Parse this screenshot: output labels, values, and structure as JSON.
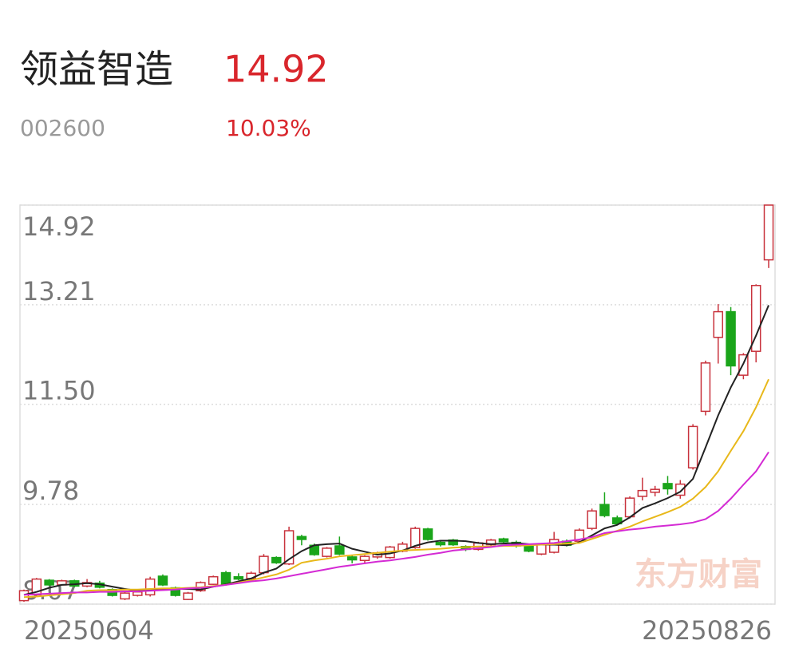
{
  "header": {
    "name": "领益智造",
    "price": "14.92",
    "code": "002600",
    "change": "10.03%"
  },
  "chart_data": {
    "type": "candlestick",
    "watermark": "东方财富",
    "categories": [
      "20250604",
      null,
      null,
      null,
      null,
      null,
      null,
      null,
      null,
      null,
      null,
      null,
      null,
      null,
      null,
      null,
      null,
      null,
      null,
      null,
      null,
      null,
      null,
      null,
      null,
      null,
      null,
      null,
      null,
      null,
      null,
      null,
      null,
      null,
      null,
      null,
      null,
      null,
      null,
      null,
      null,
      null,
      null,
      null,
      null,
      null,
      null,
      null,
      null,
      null,
      null,
      null,
      null,
      null,
      null,
      null,
      null,
      null,
      null,
      "20250826"
    ],
    "open": [
      8.13,
      8.23,
      8.48,
      8.4,
      8.47,
      8.38,
      8.43,
      8.32,
      8.16,
      8.22,
      8.23,
      8.55,
      8.35,
      8.15,
      8.3,
      8.41,
      8.61,
      8.54,
      8.51,
      8.61,
      8.87,
      8.76,
      9.23,
      9.08,
      8.89,
      9.07,
      8.88,
      8.82,
      8.88,
      8.87,
      8.98,
      9.04,
      9.36,
      9.13,
      9.17,
      9.06,
      9.01,
      9.09,
      9.19,
      9.13,
      9.07,
      8.93,
      8.96,
      9.15,
      9.15,
      9.37,
      9.78,
      9.55,
      9.57,
      9.92,
      9.99,
      10.14,
      9.94,
      10.41,
      11.38,
      12.65,
      13.09,
      12.0,
      12.41,
      13.98
    ],
    "high": [
      8.32,
      8.52,
      8.5,
      8.49,
      8.49,
      8.5,
      8.47,
      8.34,
      8.3,
      8.31,
      8.54,
      8.58,
      8.37,
      8.28,
      8.46,
      8.56,
      8.64,
      8.6,
      8.63,
      8.93,
      8.89,
      9.4,
      9.26,
      9.11,
      9.05,
      9.23,
      8.9,
      8.91,
      8.97,
      9.07,
      9.14,
      9.4,
      9.38,
      9.16,
      9.19,
      9.08,
      9.14,
      9.19,
      9.21,
      9.16,
      9.09,
      9.12,
      9.31,
      9.18,
      9.37,
      9.71,
      9.99,
      9.59,
      9.92,
      10.24,
      10.1,
      10.27,
      10.2,
      11.16,
      12.25,
      13.22,
      13.17,
      12.38,
      13.56,
      14.92
    ],
    "low": [
      8.11,
      8.2,
      8.38,
      8.39,
      8.36,
      8.36,
      8.34,
      8.2,
      8.14,
      8.2,
      8.2,
      8.38,
      8.2,
      8.14,
      8.28,
      8.4,
      8.39,
      8.48,
      8.49,
      8.58,
      8.76,
      8.74,
      9.08,
      8.9,
      8.87,
      8.91,
      8.77,
      8.76,
      8.85,
      8.85,
      8.96,
      9.02,
      9.16,
      9.06,
      9.07,
      8.98,
      8.99,
      9.06,
      9.12,
      9.04,
      8.96,
      8.91,
      8.94,
      9.06,
      9.13,
      9.34,
      9.56,
      9.42,
      9.54,
      9.85,
      9.92,
      9.95,
      9.88,
      10.38,
      11.31,
      12.2,
      12.0,
      11.93,
      12.22,
      13.84
    ],
    "close": [
      8.3,
      8.5,
      8.4,
      8.47,
      8.38,
      8.44,
      8.36,
      8.22,
      8.26,
      8.28,
      8.5,
      8.4,
      8.22,
      8.26,
      8.44,
      8.54,
      8.41,
      8.5,
      8.6,
      8.89,
      8.78,
      9.33,
      9.18,
      8.92,
      9.03,
      8.93,
      8.83,
      8.89,
      8.95,
      9.05,
      9.1,
      9.37,
      9.18,
      9.09,
      9.09,
      9.01,
      9.12,
      9.17,
      9.14,
      9.07,
      8.98,
      9.09,
      9.18,
      9.08,
      9.34,
      9.67,
      9.59,
      9.45,
      9.89,
      10.02,
      10.04,
      10.05,
      10.13,
      11.12,
      12.21,
      13.09,
      12.16,
      12.35,
      13.54,
      14.92
    ],
    "up_color": "#c8323c",
    "down_color": "#1aa51a",
    "series": [
      {
        "color": "#222222",
        "values": [
          8.23,
          8.28,
          8.35,
          8.4,
          8.41,
          8.43,
          8.41,
          8.37,
          8.33,
          8.3,
          8.31,
          8.33,
          8.33,
          8.33,
          8.32,
          8.37,
          8.41,
          8.46,
          8.51,
          8.61,
          8.68,
          8.84,
          8.98,
          9.08,
          9.1,
          9.11,
          9.02,
          8.97,
          8.92,
          8.94,
          8.99,
          9.07,
          9.13,
          9.16,
          9.16,
          9.15,
          9.12,
          9.1,
          9.11,
          9.12,
          9.1,
          9.09,
          9.09,
          9.08,
          9.13,
          9.25,
          9.37,
          9.43,
          9.56,
          9.72,
          9.8,
          9.89,
          10.0,
          10.22,
          10.76,
          11.31,
          11.79,
          12.2,
          12.68,
          13.2
        ]
      },
      {
        "color": "#e8b81a",
        "values": [
          8.19,
          8.2,
          8.22,
          8.24,
          8.26,
          8.3,
          8.31,
          8.31,
          8.32,
          8.32,
          8.33,
          8.34,
          8.34,
          8.35,
          8.36,
          8.38,
          8.4,
          8.44,
          8.48,
          8.53,
          8.58,
          8.66,
          8.78,
          8.82,
          8.85,
          8.89,
          8.91,
          8.93,
          8.95,
          8.97,
          8.99,
          9.0,
          9.01,
          9.02,
          9.04,
          9.05,
          9.06,
          9.06,
          9.07,
          9.07,
          9.08,
          9.09,
          9.1,
          9.11,
          9.12,
          9.19,
          9.26,
          9.33,
          9.4,
          9.49,
          9.57,
          9.65,
          9.74,
          9.88,
          10.08,
          10.35,
          10.7,
          11.04,
          11.45,
          11.93
        ]
      },
      {
        "color": "#d42ad4",
        "values": [
          8.23,
          8.24,
          8.25,
          8.26,
          8.27,
          8.27,
          8.28,
          8.28,
          8.29,
          8.29,
          8.3,
          8.31,
          8.32,
          8.34,
          8.35,
          8.37,
          8.4,
          8.43,
          8.46,
          8.48,
          8.51,
          8.55,
          8.59,
          8.63,
          8.67,
          8.71,
          8.74,
          8.77,
          8.8,
          8.82,
          8.85,
          8.88,
          8.92,
          8.95,
          8.99,
          9.01,
          9.03,
          9.05,
          9.08,
          9.09,
          9.1,
          9.11,
          9.12,
          9.15,
          9.18,
          9.22,
          9.29,
          9.32,
          9.35,
          9.37,
          9.4,
          9.42,
          9.44,
          9.47,
          9.53,
          9.67,
          9.88,
          10.12,
          10.35,
          10.68
        ]
      }
    ],
    "ylim": [
      8.07,
      14.92
    ],
    "yticks": [
      8.07,
      9.78,
      {
        "value": 11.5,
        "label": "11.50"
      },
      13.21,
      14.92
    ],
    "grid": true
  }
}
